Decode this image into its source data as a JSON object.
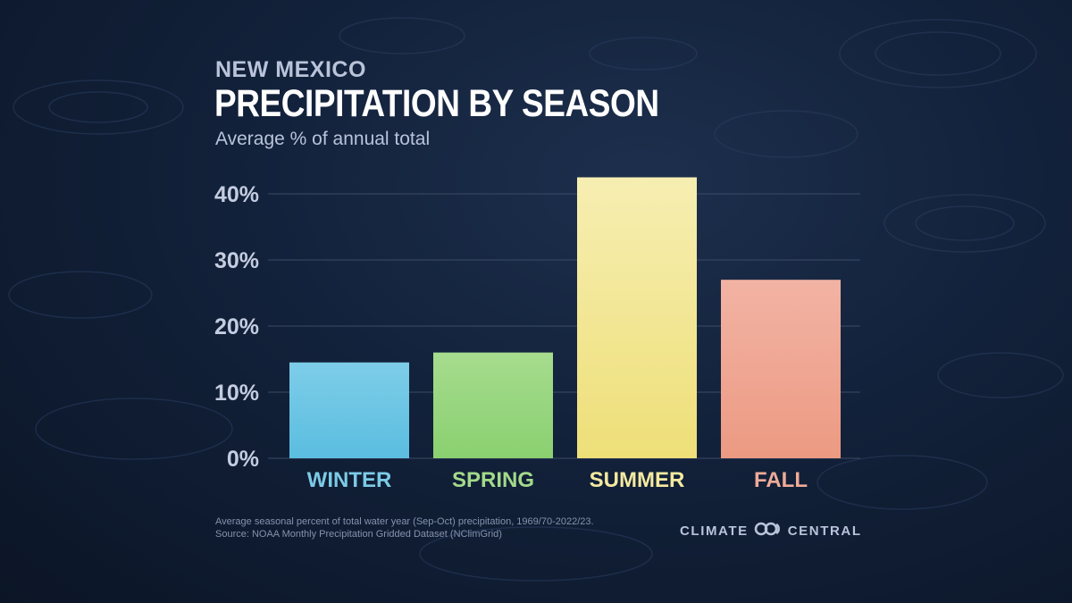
{
  "header": {
    "eyebrow": "NEW MEXICO",
    "title": "PRECIPITATION BY SEASON",
    "subtitle": "Average % of annual total"
  },
  "footer": {
    "note_line1": "Average seasonal percent of total water year (Sep-Oct) precipitation, 1969/70-2022/23.",
    "note_line2": "Source: NOAA Monthly Precipitation Gridded Dataset (NClimGrid)",
    "brand_left": "CLIMATE",
    "brand_right": "CENTRAL",
    "brand_logo_icon": "climate-central-logo-icon"
  },
  "colors": {
    "gridline": "#3c4a66",
    "tick_label": "#c4cce0",
    "winter_top": "#7dcde8",
    "winter_bottom": "#5bbde0",
    "spring_top": "#a6dc8e",
    "spring_bottom": "#8ad070",
    "summer_top": "#f6eeb2",
    "summer_bottom": "#eedf78",
    "fall_top": "#f2b3a4",
    "fall_bottom": "#ec9a82"
  },
  "chart_data": {
    "type": "bar",
    "categories": [
      "WINTER",
      "SPRING",
      "SUMMER",
      "FALL"
    ],
    "values": [
      14.5,
      16.0,
      42.5,
      27.0
    ],
    "category_colors": [
      "#7ccbe6",
      "#a3da8a",
      "#f3e9a0",
      "#f0ab98"
    ],
    "title": "PRECIPITATION BY SEASON",
    "subtitle": "Average % of annual total",
    "ylim": [
      0,
      40
    ],
    "yticks": [
      0,
      10,
      20,
      30,
      40
    ],
    "ytick_labels": [
      "0%",
      "10%",
      "20%",
      "30%",
      "40%"
    ],
    "grid": true,
    "legend": "none"
  }
}
